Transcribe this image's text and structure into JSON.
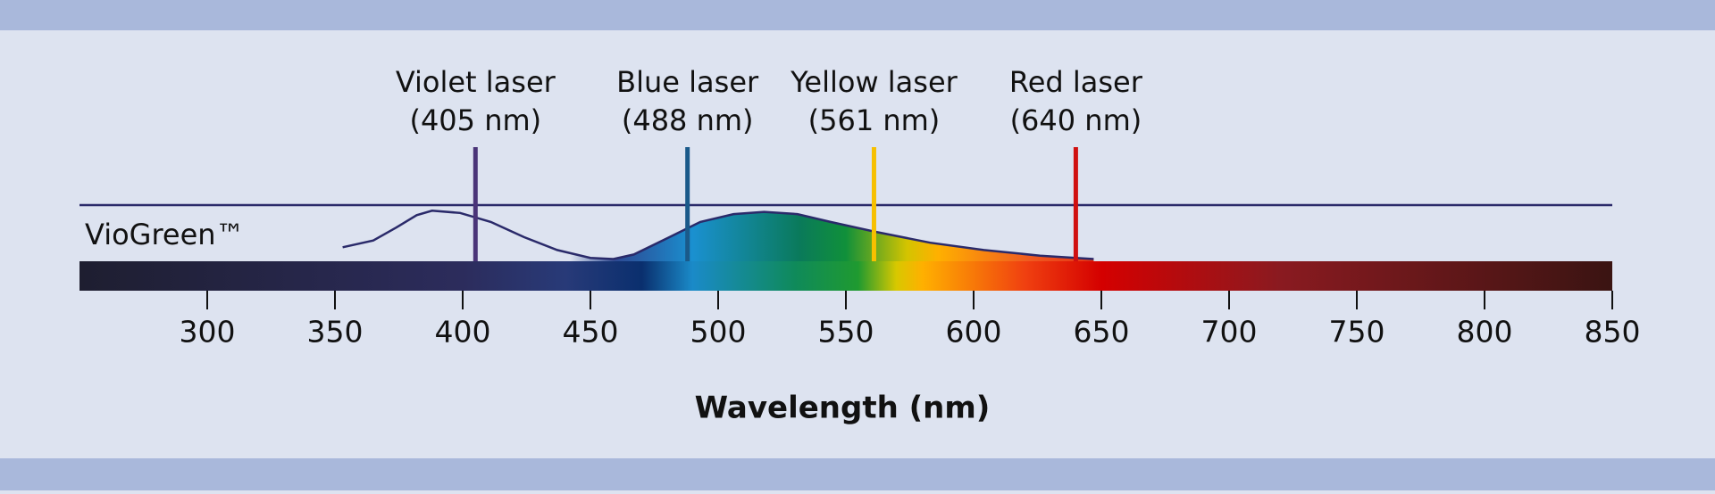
{
  "chart_data": {
    "type": "spectrum",
    "x_label": "Wavelength (nm)",
    "xlim": [
      250,
      850
    ],
    "xticks": [
      300,
      350,
      400,
      450,
      500,
      550,
      600,
      650,
      700,
      750,
      800,
      850
    ],
    "ylim": [
      0,
      1
    ],
    "curve": {
      "name": "VioGreen™",
      "color": "#2a2a6a",
      "x": [
        353,
        365,
        374,
        382,
        388,
        399,
        411,
        424,
        437,
        450,
        459,
        467,
        480,
        493,
        506,
        518,
        531,
        544,
        561,
        583,
        604,
        626,
        647
      ],
      "values": [
        0.25,
        0.37,
        0.6,
        0.82,
        0.9,
        0.86,
        0.7,
        0.43,
        0.2,
        0.06,
        0.04,
        0.12,
        0.41,
        0.7,
        0.84,
        0.88,
        0.84,
        0.7,
        0.53,
        0.33,
        0.2,
        0.1,
        0.04
      ]
    },
    "lasers": {
      "names": [
        "Violet laser",
        "Blue laser",
        "Yellow laser",
        "Red laser"
      ],
      "values": [
        405,
        488,
        561,
        640
      ],
      "value_labels": [
        "(405 nm)",
        "(488 nm)",
        "(561 nm)",
        "(640 nm)"
      ],
      "colors": [
        "#4a3478",
        "#1a5a8a",
        "#f7c000",
        "#d01010"
      ]
    }
  }
}
